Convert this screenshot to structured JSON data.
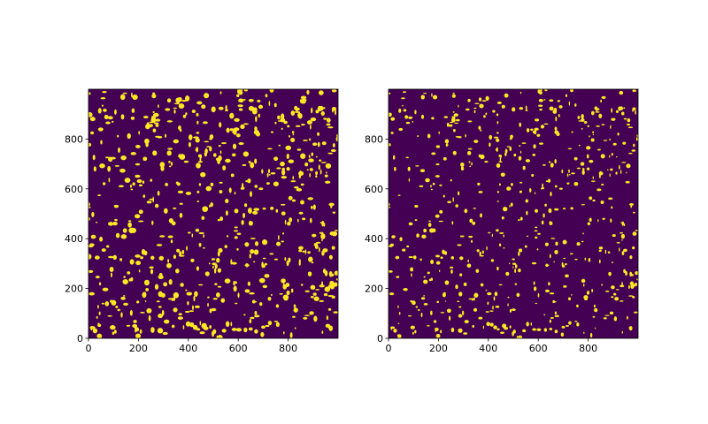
{
  "chart_data": [
    {
      "type": "image",
      "xlim": [
        0,
        1000
      ],
      "ylim": [
        0,
        1000
      ],
      "xticks": [
        0,
        200,
        400,
        600,
        800
      ],
      "yticks": [
        0,
        200,
        400,
        600,
        800
      ],
      "colors": [
        "#440154",
        "#fde725"
      ]
    },
    {
      "type": "image",
      "xlim": [
        0,
        1000
      ],
      "ylim": [
        0,
        1000
      ],
      "xticks": [
        0,
        200,
        400,
        600,
        800
      ],
      "yticks": [
        0,
        200,
        400,
        600,
        800
      ],
      "colors": [
        "#440154",
        "#fde725"
      ]
    }
  ]
}
